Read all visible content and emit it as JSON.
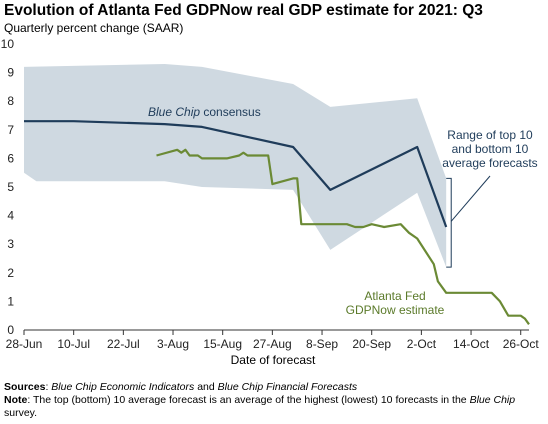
{
  "title": "Evolution of Atlanta Fed GDPNow real GDP estimate for 2021: Q3",
  "subtitle": "Quarterly percent change (SAAR)",
  "chart_data": {
    "type": "line",
    "title": "Evolution of Atlanta Fed GDPNow real GDP estimate for 2021: Q3",
    "subtitle": "Quarterly percent change (SAAR)",
    "xlabel": "Date of forecast",
    "ylabel": "",
    "ylim": [
      0,
      10
    ],
    "yticks": [
      "0",
      "1",
      "2",
      "3",
      "4",
      "5",
      "6",
      "7",
      "8",
      "9",
      "10"
    ],
    "xticks": [
      "28-Jun",
      "10-Jul",
      "22-Jul",
      "3-Aug",
      "15-Aug",
      "27-Aug",
      "8-Sep",
      "20-Sep",
      "2-Oct",
      "14-Oct",
      "26-Oct"
    ],
    "xrange": [
      "2021-06-28",
      "2021-10-28"
    ],
    "grid": false,
    "series": [
      {
        "name": "Blue Chip consensus",
        "label_parts": [
          "Blue Chip",
          " consensus"
        ],
        "color": "#1f3c5a",
        "points": [
          [
            "2021-06-28",
            7.3
          ],
          [
            "2021-07-10",
            7.3
          ],
          [
            "2021-08-01",
            7.2
          ],
          [
            "2021-08-10",
            7.1
          ],
          [
            "2021-09-01",
            6.4
          ],
          [
            "2021-09-10",
            4.9
          ],
          [
            "2021-10-01",
            6.4
          ],
          [
            "2021-10-08",
            3.6
          ]
        ]
      },
      {
        "name": "Atlanta Fed GDPNow estimate",
        "label_lines": [
          "Atlanta Fed",
          "GDPNow estimate"
        ],
        "color": "#6b8a35",
        "points": [
          [
            "2021-07-30",
            6.1
          ],
          [
            "2021-08-04",
            6.3
          ],
          [
            "2021-08-05",
            6.2
          ],
          [
            "2021-08-06",
            6.3
          ],
          [
            "2021-08-07",
            6.1
          ],
          [
            "2021-08-09",
            6.1
          ],
          [
            "2021-08-10",
            6.0
          ],
          [
            "2021-08-13",
            6.0
          ],
          [
            "2021-08-16",
            6.0
          ],
          [
            "2021-08-19",
            6.1
          ],
          [
            "2021-08-20",
            6.2
          ],
          [
            "2021-08-21",
            6.1
          ],
          [
            "2021-08-26",
            6.1
          ],
          [
            "2021-08-27",
            5.1
          ],
          [
            "2021-09-01",
            5.3
          ],
          [
            "2021-09-02",
            5.3
          ],
          [
            "2021-09-03",
            3.7
          ],
          [
            "2021-09-07",
            3.7
          ],
          [
            "2021-09-14",
            3.7
          ],
          [
            "2021-09-16",
            3.6
          ],
          [
            "2021-09-18",
            3.6
          ],
          [
            "2021-09-20",
            3.7
          ],
          [
            "2021-09-23",
            3.6
          ],
          [
            "2021-09-27",
            3.7
          ],
          [
            "2021-09-29",
            3.4
          ],
          [
            "2021-10-01",
            3.2
          ],
          [
            "2021-10-05",
            2.3
          ],
          [
            "2021-10-06",
            1.7
          ],
          [
            "2021-10-08",
            1.3
          ],
          [
            "2021-10-14",
            1.3
          ],
          [
            "2021-10-19",
            1.3
          ],
          [
            "2021-10-21",
            1.0
          ],
          [
            "2021-10-23",
            0.5
          ],
          [
            "2021-10-25",
            0.5
          ],
          [
            "2021-10-26",
            0.5
          ],
          [
            "2021-10-27",
            0.4
          ],
          [
            "2021-10-28",
            0.2
          ]
        ]
      }
    ],
    "band": {
      "name": "Range of top 10 and bottom 10 average forecasts",
      "label_lines": [
        "Range of top 10",
        "and bottom 10",
        "average forecasts"
      ],
      "color": "#cfd9e1",
      "upper": [
        [
          "2021-06-28",
          9.2
        ],
        [
          "2021-08-01",
          9.3
        ],
        [
          "2021-08-10",
          9.2
        ],
        [
          "2021-09-01",
          8.6
        ],
        [
          "2021-09-10",
          7.8
        ],
        [
          "2021-10-01",
          8.1
        ],
        [
          "2021-10-08",
          5.3
        ]
      ],
      "lower": [
        [
          "2021-06-28",
          5.5
        ],
        [
          "2021-07-01",
          5.2
        ],
        [
          "2021-08-01",
          5.2
        ],
        [
          "2021-08-10",
          5.0
        ],
        [
          "2021-09-01",
          4.9
        ],
        [
          "2021-09-10",
          2.8
        ],
        [
          "2021-10-01",
          4.8
        ],
        [
          "2021-10-08",
          2.2
        ]
      ]
    }
  },
  "notes": {
    "sources_label": "Sources",
    "sources_parts": [
      ": ",
      "Blue Chip Economic Indicators",
      " and ",
      "Blue Chip Financial Forecasts"
    ],
    "note_label": "Note",
    "note_parts": [
      ": The top (bottom) 10 average forecast is an average of the highest (lowest) 10 forecasts in the ",
      "Blue Chip",
      " survey."
    ]
  }
}
